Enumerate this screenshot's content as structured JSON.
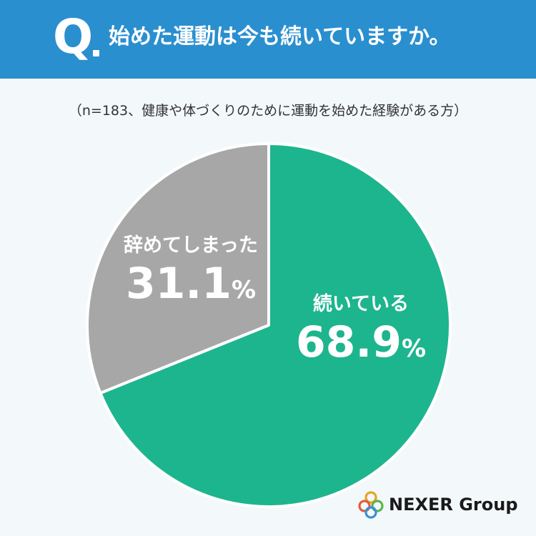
{
  "header": {
    "q_letter": "Q",
    "question": "始めた運動は今も続いていますか。",
    "background_color": "#2a8fcf"
  },
  "note": "（n=183、健康や体づくりのために運動を始めた経験がある方）",
  "chart_data": {
    "type": "pie",
    "categories": [
      "続いている",
      "辞めてしまった"
    ],
    "values": [
      68.9,
      31.1
    ],
    "unit": "%",
    "colors": [
      "#1db58e",
      "#a7a7a7"
    ],
    "start_angle": "12 o'clock",
    "direction": "clockwise"
  },
  "labels": {
    "continuing": {
      "name": "続いている",
      "pct": "68.9",
      "unit": "%"
    },
    "quit": {
      "name": "辞めてしまった",
      "pct": "31.1",
      "unit": "%"
    }
  },
  "logo": {
    "text": "NEXER Group",
    "ring_colors": [
      "#e8a325",
      "#e35a3b",
      "#5cb54a",
      "#3a8fd6"
    ]
  }
}
